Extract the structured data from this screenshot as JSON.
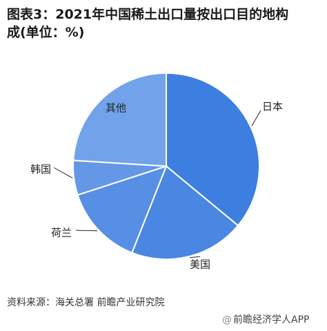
{
  "title_line1": "图表3：2021年中国稀土出口量按出口目的地构",
  "title_line2": "成(单位：%)",
  "chart_data": {
    "type": "pie",
    "title": "图表3：2021年中国稀土出口量按出口目的地构成(单位：%)",
    "slices": [
      {
        "label": "日本",
        "value": 36
      },
      {
        "label": "美国",
        "value": 20
      },
      {
        "label": "荷兰",
        "value": 14
      },
      {
        "label": "韩国",
        "value": 6
      },
      {
        "label": "其他",
        "value": 24
      }
    ],
    "colors": [
      "#3d7fe0",
      "#4a87e2",
      "#578fe4",
      "#6497e6",
      "#72a2ea"
    ],
    "stroke_color": "#ffffff",
    "label_line_color": "#222222"
  },
  "source": "资料来源：海关总署 前瞻产业研究院",
  "brand": {
    "icon": "at-icon",
    "mark": "@",
    "text": "前瞻经济学人APP"
  }
}
